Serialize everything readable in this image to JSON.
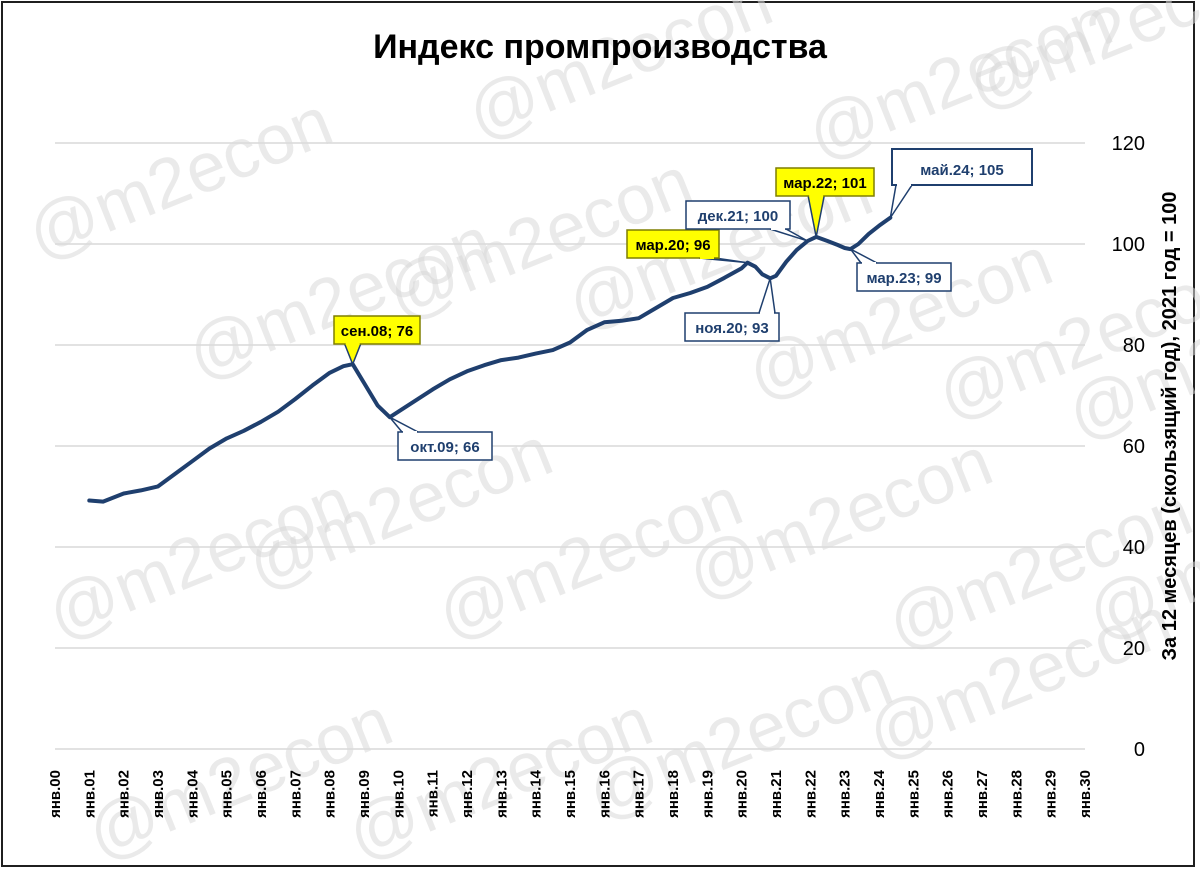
{
  "chart_data": {
    "type": "line",
    "title": "Индекс промпроизводства",
    "ylabel": "За 12 месяцев (скользящий год), 2021 год = 100",
    "ylim": [
      0,
      120
    ],
    "yticks": [
      "0",
      "20",
      "40",
      "60",
      "80",
      "100",
      "120"
    ],
    "xticks": [
      "янв.00",
      "янв.01",
      "янв.02",
      "янв.03",
      "янв.04",
      "янв.05",
      "янв.06",
      "янв.07",
      "янв.08",
      "янв.09",
      "янв.10",
      "янв.11",
      "янв.12",
      "янв.13",
      "янв.14",
      "янв.15",
      "янв.16",
      "янв.17",
      "янв.18",
      "янв.19",
      "янв.20",
      "янв.21",
      "янв.22",
      "янв.23",
      "янв.24",
      "янв.25",
      "янв.26",
      "янв.27",
      "янв.28",
      "янв.29",
      "янв.30"
    ],
    "xlim": [
      2000,
      2030
    ],
    "grid": true,
    "y_axis_position": "right",
    "series": [
      {
        "color": "#1f3f6e",
        "points": [
          [
            2001.0,
            49.2
          ],
          [
            2001.4,
            49.0
          ],
          [
            2002.0,
            50.6
          ],
          [
            2002.5,
            51.2
          ],
          [
            2003.0,
            52.0
          ],
          [
            2003.5,
            54.5
          ],
          [
            2004.0,
            57.0
          ],
          [
            2004.5,
            59.5
          ],
          [
            2005.0,
            61.5
          ],
          [
            2005.5,
            63.0
          ],
          [
            2006.0,
            64.8
          ],
          [
            2006.5,
            66.8
          ],
          [
            2007.0,
            69.3
          ],
          [
            2007.5,
            72.0
          ],
          [
            2008.0,
            74.5
          ],
          [
            2008.4,
            75.8
          ],
          [
            2008.67,
            76.2
          ],
          [
            2009.0,
            72.5
          ],
          [
            2009.4,
            68.0
          ],
          [
            2009.75,
            65.7
          ],
          [
            2010.0,
            66.8
          ],
          [
            2010.5,
            69.0
          ],
          [
            2011.0,
            71.2
          ],
          [
            2011.5,
            73.2
          ],
          [
            2012.0,
            74.8
          ],
          [
            2012.5,
            76.0
          ],
          [
            2013.0,
            77.0
          ],
          [
            2013.5,
            77.5
          ],
          [
            2014.0,
            78.3
          ],
          [
            2014.5,
            79.0
          ],
          [
            2015.0,
            80.5
          ],
          [
            2015.5,
            83.0
          ],
          [
            2016.0,
            84.5
          ],
          [
            2016.5,
            84.8
          ],
          [
            2017.0,
            85.3
          ],
          [
            2017.5,
            87.3
          ],
          [
            2018.0,
            89.3
          ],
          [
            2018.5,
            90.3
          ],
          [
            2019.0,
            91.5
          ],
          [
            2019.5,
            93.3
          ],
          [
            2020.0,
            95.2
          ],
          [
            2020.17,
            96.3
          ],
          [
            2020.4,
            95.5
          ],
          [
            2020.6,
            94.0
          ],
          [
            2020.83,
            93.2
          ],
          [
            2021.0,
            93.7
          ],
          [
            2021.3,
            96.5
          ],
          [
            2021.6,
            98.8
          ],
          [
            2021.92,
            100.6
          ],
          [
            2022.17,
            101.4
          ],
          [
            2022.5,
            100.6
          ],
          [
            2022.8,
            99.8
          ],
          [
            2023.0,
            99.2
          ],
          [
            2023.17,
            99.0
          ],
          [
            2023.4,
            100.0
          ],
          [
            2023.7,
            102.0
          ],
          [
            2024.0,
            103.6
          ],
          [
            2024.33,
            105.2
          ]
        ]
      }
    ],
    "annotations": [
      {
        "label": "сен.08; 76",
        "x": 2008.67,
        "y": 76.2,
        "style": "yellow"
      },
      {
        "label": "окт.09; 66",
        "x": 2009.75,
        "y": 65.7,
        "style": "white"
      },
      {
        "label": "мар.20; 96",
        "x": 2020.17,
        "y": 96.3,
        "style": "yellow"
      },
      {
        "label": "ноя.20; 93",
        "x": 2020.83,
        "y": 93.2,
        "style": "white"
      },
      {
        "label": "дек.21; 100",
        "x": 2021.92,
        "y": 100.6,
        "style": "white"
      },
      {
        "label": "мар.22; 101",
        "x": 2022.17,
        "y": 101.4,
        "style": "yellow"
      },
      {
        "label": "мар.23; 99",
        "x": 2023.17,
        "y": 99.0,
        "style": "white"
      },
      {
        "label": "май.24; 105",
        "x": 2024.33,
        "y": 105.2,
        "style": "large"
      }
    ]
  },
  "watermark": "@m2econ",
  "colors": {
    "line": "#1f3f6e",
    "highlight": "#ffff00",
    "grid": "#d9d9d9",
    "callout_border": "#1f3f6e"
  }
}
